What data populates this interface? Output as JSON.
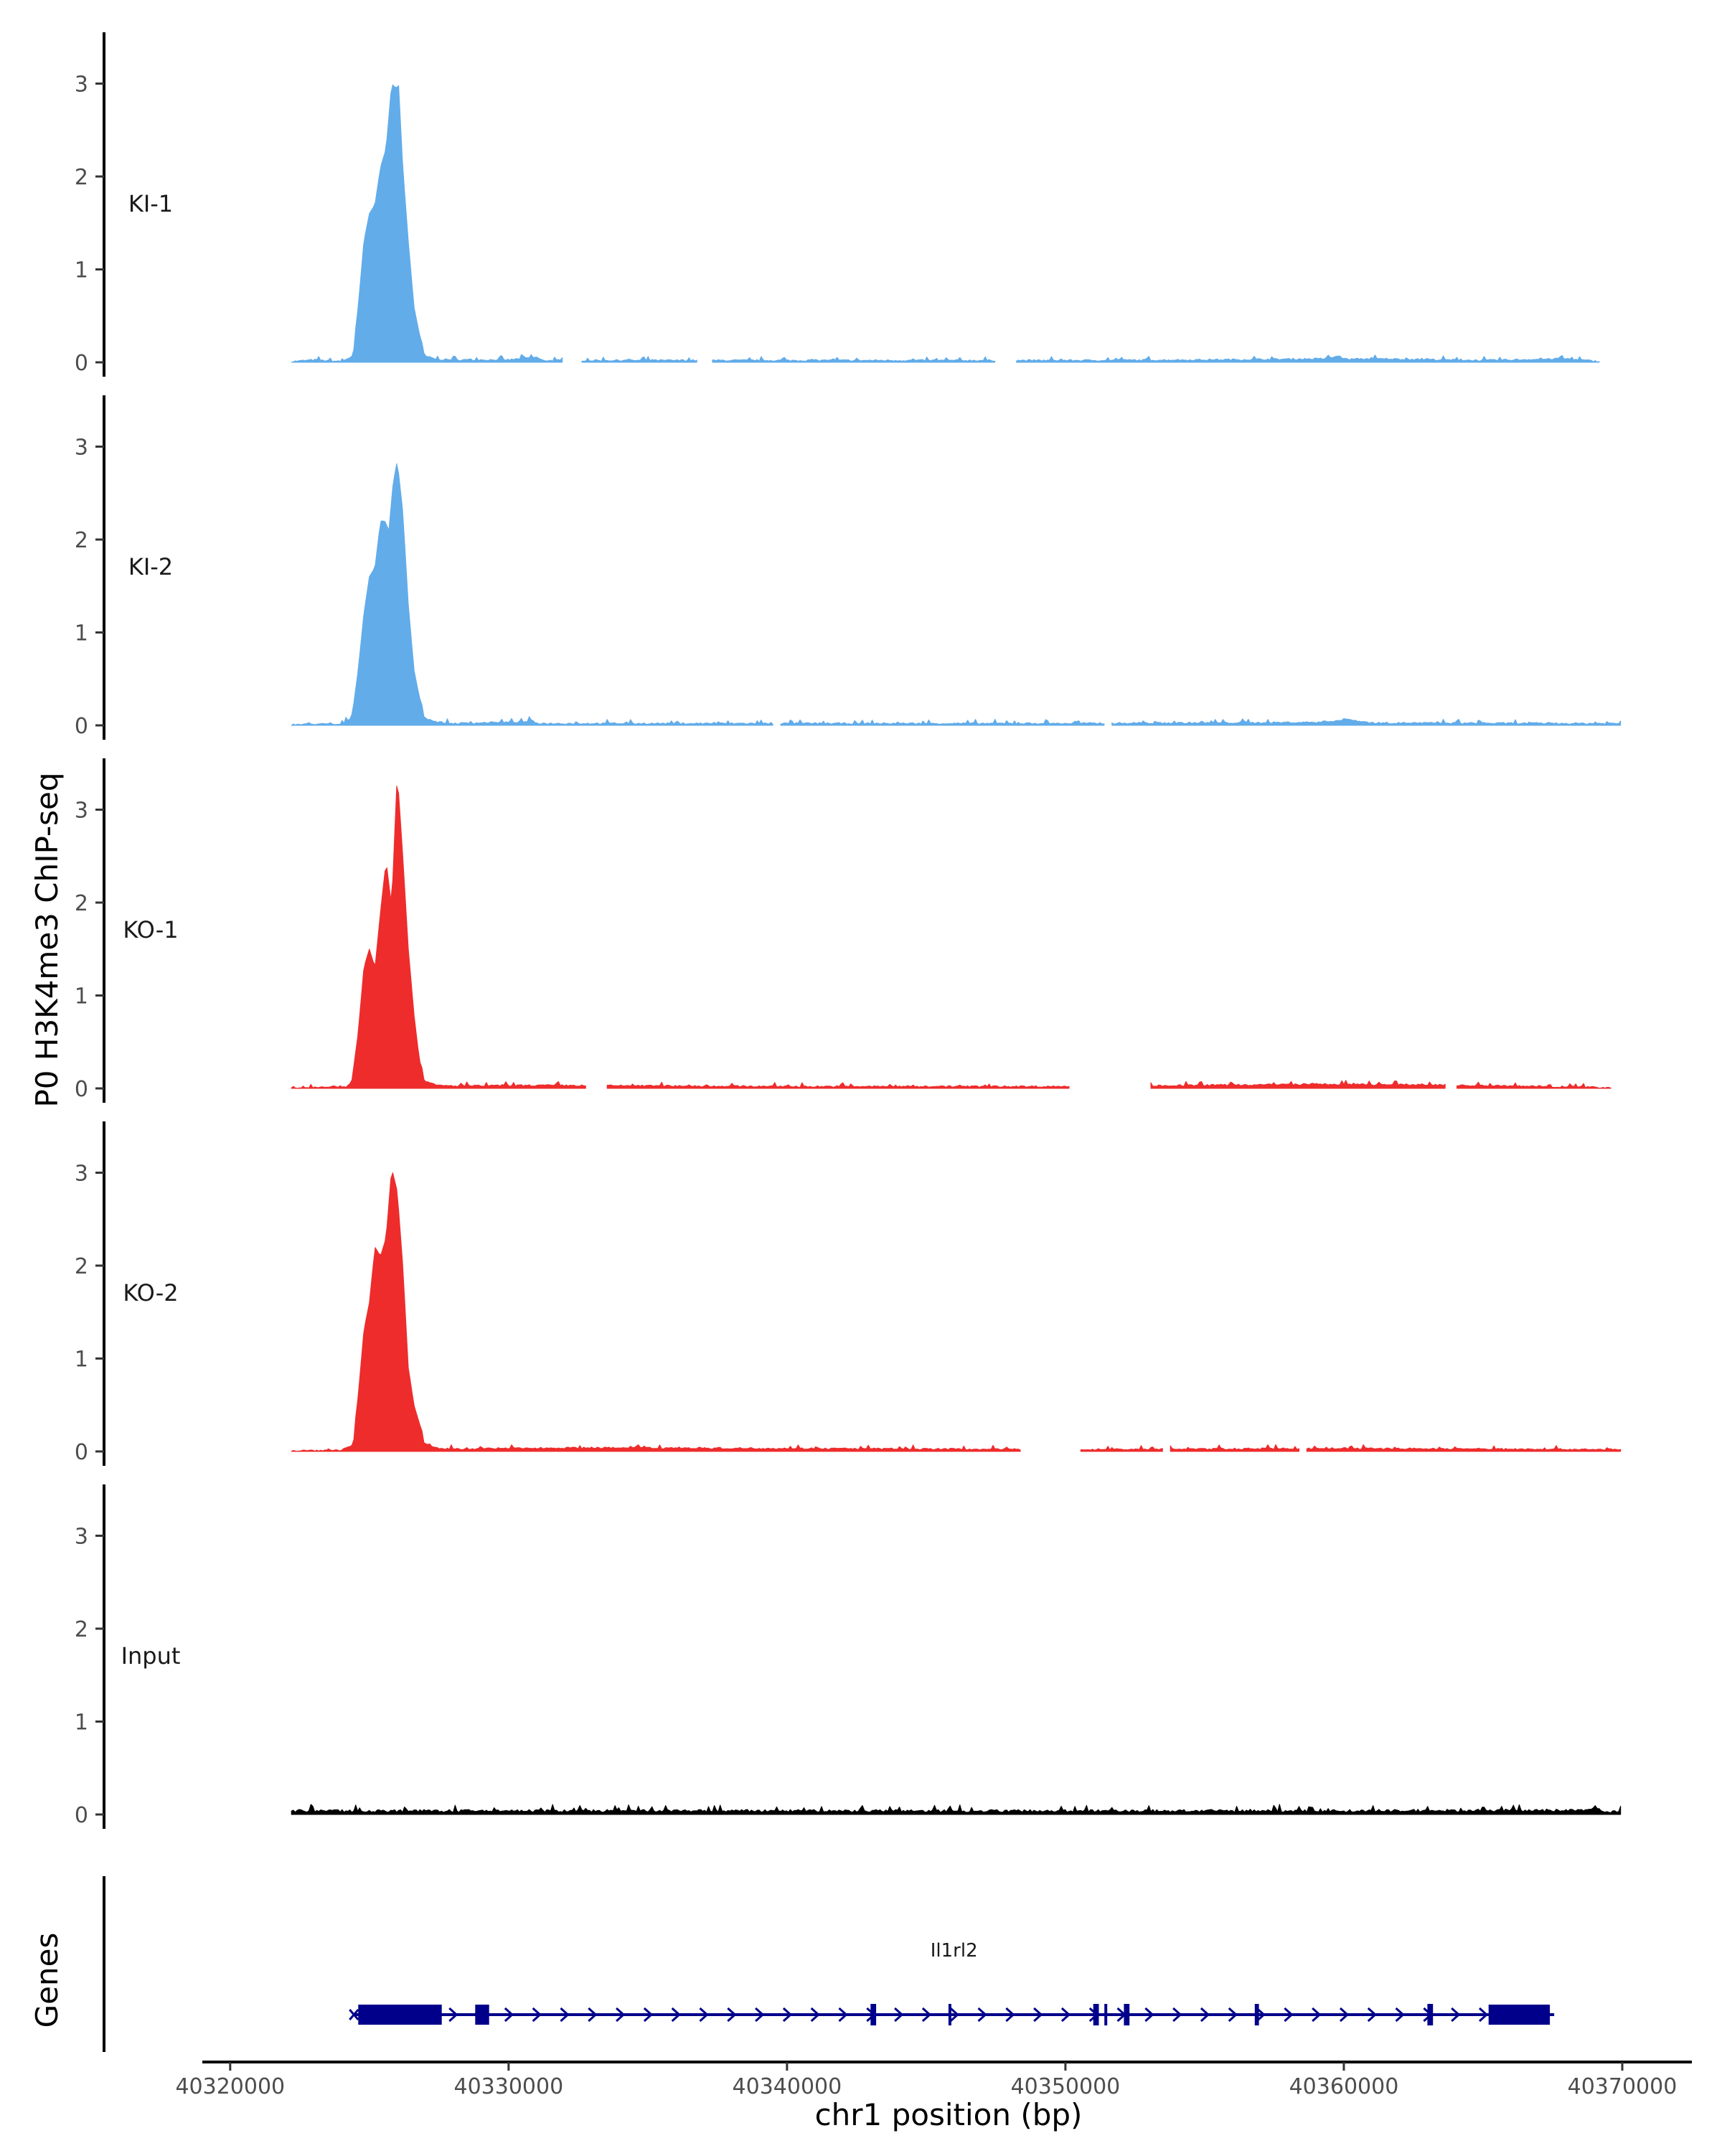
{
  "chart_data": {
    "type": "area",
    "title": "",
    "ylabel": "P0 H3K4me3 ChIP-seq",
    "xlabel": "chr1 position (bp)",
    "xlim": [
      40319000,
      40372500
    ],
    "ylim": [
      0,
      3.5
    ],
    "yticks": [
      0,
      1,
      2,
      3
    ],
    "xticks": [
      40320000,
      40330000,
      40340000,
      40350000,
      40360000,
      40370000
    ],
    "xtick_labels": [
      "40320000",
      "40330000",
      "40340000",
      "40350000",
      "40360000",
      "40370000"
    ],
    "data_range": [
      40322200,
      40370000
    ],
    "tracks": [
      {
        "name": "KI-1",
        "color": "#62ACEA",
        "peak": [
          [
            40322200,
            0
          ],
          [
            40323000,
            0.03
          ],
          [
            40324000,
            0
          ],
          [
            40324400,
            0.1
          ],
          [
            40324600,
            0.6
          ],
          [
            40324800,
            1.3
          ],
          [
            40325000,
            1.6
          ],
          [
            40325200,
            1.7
          ],
          [
            40325400,
            2.1
          ],
          [
            40325600,
            2.3
          ],
          [
            40325800,
            3.0
          ],
          [
            40325950,
            2.95
          ],
          [
            40326050,
            2.98
          ],
          [
            40326200,
            2.1
          ],
          [
            40326400,
            1.3
          ],
          [
            40326600,
            0.6
          ],
          [
            40326800,
            0.3
          ],
          [
            40327000,
            0.1
          ],
          [
            40327400,
            0.04
          ],
          [
            40328000,
            0.03
          ],
          [
            40330000,
            0.03
          ],
          [
            40331000,
            0.08
          ],
          [
            40331200,
            0.02
          ],
          [
            40340000,
            0.02
          ],
          [
            40350000,
            0.02
          ],
          [
            40355000,
            0.03
          ],
          [
            40359400,
            0.05
          ],
          [
            40359800,
            0.1
          ],
          [
            40360100,
            0.04
          ],
          [
            40361000,
            0.05
          ],
          [
            40365000,
            0.02
          ],
          [
            40368000,
            0.05
          ],
          [
            40369200,
            0
          ]
        ],
        "noise_amp": 0.03,
        "gaps": [
          [
            40332000,
            40332600
          ],
          [
            40336800,
            40337300
          ],
          [
            40347500,
            40348200
          ],
          [
            40359500,
            40359500
          ]
        ]
      },
      {
        "name": "KI-2",
        "color": "#62ACEA",
        "peak": [
          [
            40322200,
            0
          ],
          [
            40323200,
            0.01
          ],
          [
            40324000,
            0
          ],
          [
            40324400,
            0.15
          ],
          [
            40324600,
            0.6
          ],
          [
            40324800,
            1.2
          ],
          [
            40325000,
            1.6
          ],
          [
            40325200,
            1.7
          ],
          [
            40325400,
            2.2
          ],
          [
            40325550,
            2.2
          ],
          [
            40325700,
            2.1
          ],
          [
            40325850,
            2.6
          ],
          [
            40326000,
            2.85
          ],
          [
            40326200,
            2.3
          ],
          [
            40326400,
            1.3
          ],
          [
            40326600,
            0.6
          ],
          [
            40326800,
            0.3
          ],
          [
            40327000,
            0.12
          ],
          [
            40327400,
            0.05
          ],
          [
            40328000,
            0.02
          ],
          [
            40330600,
            0.05
          ],
          [
            40330800,
            0.08
          ],
          [
            40331000,
            0.02
          ],
          [
            40340000,
            0.02
          ],
          [
            40350000,
            0.02
          ],
          [
            40359000,
            0.04
          ],
          [
            40360200,
            0.09
          ],
          [
            40361000,
            0.03
          ],
          [
            40368000,
            0.02
          ],
          [
            40370000,
            0.02
          ]
        ],
        "noise_amp": 0.03,
        "gaps": [
          [
            40339500,
            40339700
          ],
          [
            40351400,
            40351600
          ]
        ]
      },
      {
        "name": "KO-1",
        "color": "#EE2C2C",
        "peak": [
          [
            40322600,
            0
          ],
          [
            40323400,
            0.02
          ],
          [
            40324200,
            0.02
          ],
          [
            40324400,
            0.15
          ],
          [
            40324600,
            0.6
          ],
          [
            40324800,
            1.3
          ],
          [
            40325000,
            1.5
          ],
          [
            40325200,
            1.3
          ],
          [
            40325400,
            1.9
          ],
          [
            40325600,
            2.45
          ],
          [
            40325800,
            1.95
          ],
          [
            40326000,
            3.4
          ],
          [
            40326200,
            2.5
          ],
          [
            40326400,
            1.5
          ],
          [
            40326600,
            0.8
          ],
          [
            40326800,
            0.3
          ],
          [
            40327000,
            0.12
          ],
          [
            40327400,
            0.04
          ],
          [
            40328000,
            0.03
          ],
          [
            40331000,
            0.04
          ],
          [
            40340000,
            0.02
          ],
          [
            40350000,
            0.02
          ],
          [
            40359000,
            0.06
          ],
          [
            40363000,
            0.05
          ],
          [
            40369600,
            0
          ]
        ],
        "noise_amp": 0.03,
        "gaps": [
          [
            40332800,
            40333500
          ],
          [
            40350200,
            40353000
          ],
          [
            40363700,
            40364000
          ]
        ]
      },
      {
        "name": "KO-2",
        "color": "#EE2C2C",
        "peak": [
          [
            40322200,
            0
          ],
          [
            40324000,
            0.01
          ],
          [
            40324400,
            0.1
          ],
          [
            40324600,
            0.6
          ],
          [
            40324800,
            1.3
          ],
          [
            40325000,
            1.6
          ],
          [
            40325200,
            2.2
          ],
          [
            40325400,
            2.1
          ],
          [
            40325600,
            2.3
          ],
          [
            40325800,
            3.05
          ],
          [
            40326000,
            2.8
          ],
          [
            40326200,
            2.0
          ],
          [
            40326400,
            0.9
          ],
          [
            40326600,
            0.5
          ],
          [
            40326800,
            0.3
          ],
          [
            40327000,
            0.12
          ],
          [
            40327400,
            0.04
          ],
          [
            40328000,
            0.03
          ],
          [
            40332000,
            0.05
          ],
          [
            40340000,
            0.04
          ],
          [
            40350000,
            0.02
          ],
          [
            40360000,
            0.04
          ],
          [
            40370000,
            0.02
          ]
        ],
        "noise_amp": 0.03,
        "gaps": [
          [
            40348400,
            40350500
          ],
          [
            40353500,
            40353700
          ],
          [
            40358400,
            40358600
          ]
        ]
      },
      {
        "name": "Input",
        "color": "#000000",
        "peak": [
          [
            40322200,
            0.04
          ],
          [
            40330000,
            0.04
          ],
          [
            40340000,
            0.04
          ],
          [
            40350000,
            0.04
          ],
          [
            40360000,
            0.04
          ],
          [
            40368700,
            0.05
          ],
          [
            40369000,
            0.12
          ],
          [
            40369300,
            0.04
          ],
          [
            40370000,
            0.02
          ]
        ],
        "noise_amp": 0.05,
        "gaps": []
      }
    ],
    "gene_track": {
      "label": "Genes",
      "gene_name": "Il1rl2",
      "color": "#00008B",
      "start": 40324600,
      "end": 40367400,
      "exons": [
        [
          40324600,
          40327600
        ],
        [
          40328800,
          40329300
        ],
        [
          40343000,
          40343200
        ],
        [
          40345800,
          40345900
        ],
        [
          40351000,
          40351200
        ],
        [
          40351400,
          40351500
        ],
        [
          40352100,
          40352300
        ],
        [
          40356800,
          40356950
        ],
        [
          40363000,
          40363200
        ],
        [
          40365200,
          40367400
        ]
      ]
    }
  }
}
